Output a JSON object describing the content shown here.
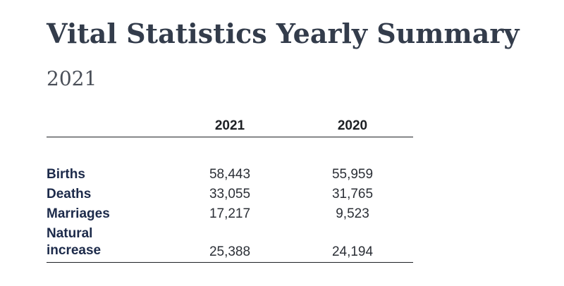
{
  "title": "Vital Statistics Yearly Summary",
  "subtitle": "2021",
  "table": {
    "columns": [
      "2021",
      "2020"
    ],
    "rows": [
      {
        "label": "Births",
        "values": [
          "58,443",
          "55,959"
        ]
      },
      {
        "label": "Deaths",
        "values": [
          "33,055",
          "31,765"
        ]
      },
      {
        "label": "Marriages",
        "values": [
          "17,217",
          "9,523"
        ]
      },
      {
        "label_line1": "Natural",
        "label_line2": "increase",
        "values": [
          "25,388",
          "24,194"
        ]
      }
    ]
  }
}
